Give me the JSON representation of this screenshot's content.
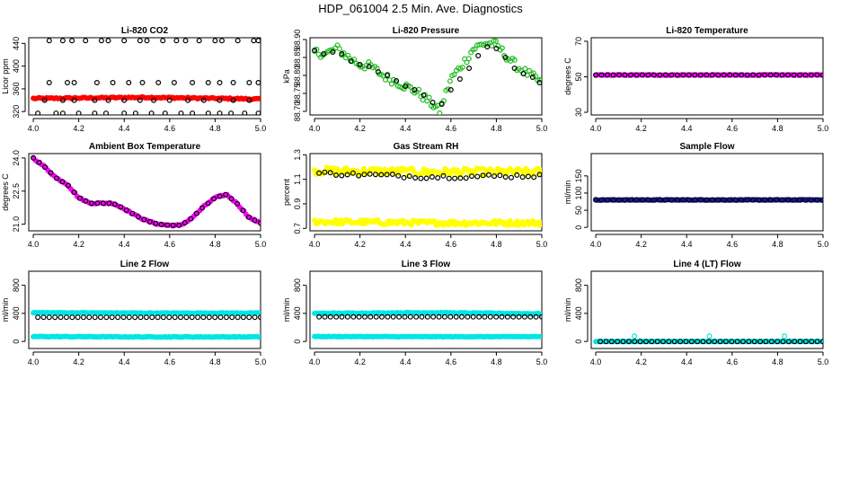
{
  "main_title": "HDP_061004  2.5 Min. Ave. Diagnostics",
  "chart_data": [
    {
      "type": "scatter",
      "id": "co2",
      "title": "Li-820 CO2",
      "ylabel": "Licor ppm",
      "xlim": [
        3.98,
        5.0
      ],
      "ylim": [
        314,
        450
      ],
      "xticks": [
        4.0,
        4.2,
        4.4,
        4.6,
        4.8,
        5.0
      ],
      "xtick_labels": [
        "4.0",
        "4.2",
        "4.4",
        "4.6",
        "4.8",
        "5.0"
      ],
      "yticks": [
        320,
        360,
        400,
        440
      ],
      "ytick_labels": [
        "320",
        "360",
        "400",
        "440"
      ],
      "series": [
        {
          "name": "CO2 1-sec",
          "color": "#ff0000",
          "filled": true,
          "kind": "band",
          "x_from": 4.0,
          "x_to": 5.0,
          "n": 120,
          "y_start": 343,
          "y_mid": 345,
          "y_end": 342,
          "jitter": 1.2
        },
        {
          "name": "CO2 high",
          "color": "#000000",
          "filled": false,
          "x": [
            4.07,
            4.13,
            4.17,
            4.23,
            4.3,
            4.33,
            4.4,
            4.47,
            4.5,
            4.57,
            4.63,
            4.67,
            4.73,
            4.8,
            4.83,
            4.9,
            4.97,
            4.99
          ],
          "y": [
            445,
            445,
            445,
            445,
            445,
            445,
            445,
            445,
            445,
            445,
            445,
            445,
            445,
            445,
            445,
            445,
            445,
            445
          ]
        },
        {
          "name": "CO2 mid",
          "color": "#000000",
          "filled": false,
          "x": [
            4.07,
            4.15,
            4.18,
            4.28,
            4.35,
            4.42,
            4.48,
            4.55,
            4.62,
            4.7,
            4.77,
            4.82,
            4.88,
            4.95,
            4.99
          ],
          "y": [
            371,
            371,
            371,
            371,
            371,
            371,
            371,
            371,
            371,
            371,
            371,
            371,
            371,
            371,
            371
          ]
        },
        {
          "name": "CO2 avg",
          "color": "#000000",
          "filled": false,
          "x": [
            4.05,
            4.13,
            4.18,
            4.27,
            4.33,
            4.4,
            4.47,
            4.53,
            4.6,
            4.68,
            4.75,
            4.82,
            4.88,
            4.95
          ],
          "y": [
            340,
            340,
            340,
            340,
            340,
            340,
            340,
            340,
            340,
            340,
            340,
            340,
            340,
            340
          ]
        },
        {
          "name": "CO2 low",
          "color": "#000000",
          "filled": false,
          "x": [
            4.02,
            4.1,
            4.13,
            4.2,
            4.27,
            4.32,
            4.4,
            4.45,
            4.52,
            4.58,
            4.65,
            4.7,
            4.77,
            4.82,
            4.87,
            4.93,
            4.99
          ],
          "y": [
            317,
            317,
            317,
            317,
            317,
            317,
            317,
            317,
            317,
            317,
            317,
            317,
            317,
            317,
            317,
            317,
            317
          ]
        }
      ]
    },
    {
      "type": "scatter",
      "id": "pressure",
      "title": "Li-820 Pressure",
      "ylabel": "kPa",
      "xlim": [
        3.98,
        5.0
      ],
      "ylim": [
        88.69,
        88.905
      ],
      "xticks": [
        4.0,
        4.2,
        4.4,
        4.6,
        4.8,
        5.0
      ],
      "xtick_labels": [
        "4.0",
        "4.2",
        "4.4",
        "4.6",
        "4.8",
        "5.0"
      ],
      "yticks": [
        88.7,
        88.75,
        88.8,
        88.85,
        88.9
      ],
      "ytick_labels": [
        "88.70",
        "88.75",
        "88.80",
        "88.85",
        "88.90"
      ],
      "series": [
        {
          "name": "Pressure 1-sec",
          "color": "#22bb22",
          "filled": false,
          "kind": "curve",
          "n": 110,
          "jitter": 0.012,
          "x": [
            4.0,
            4.05,
            4.1,
            4.15,
            4.2,
            4.25,
            4.3,
            4.35,
            4.4,
            4.45,
            4.5,
            4.55,
            4.6,
            4.65,
            4.7,
            4.75,
            4.8,
            4.85,
            4.9,
            4.95,
            5.0
          ],
          "y": [
            88.865,
            88.86,
            88.875,
            88.85,
            88.83,
            88.825,
            88.8,
            88.785,
            88.77,
            88.755,
            88.73,
            88.7,
            88.79,
            88.83,
            88.875,
            88.89,
            88.885,
            88.85,
            88.82,
            88.8,
            88.78
          ]
        },
        {
          "name": "Pressure avg",
          "color": "#000000",
          "filled": false,
          "x": [
            4.0,
            4.04,
            4.08,
            4.12,
            4.16,
            4.2,
            4.24,
            4.28,
            4.32,
            4.36,
            4.4,
            4.44,
            4.48,
            4.52,
            4.56,
            4.6,
            4.64,
            4.68,
            4.72,
            4.76,
            4.8,
            4.84,
            4.88,
            4.92,
            4.96,
            4.99
          ],
          "y": [
            88.87,
            88.86,
            88.865,
            88.86,
            88.84,
            88.83,
            88.825,
            88.81,
            88.8,
            88.785,
            88.77,
            88.76,
            88.745,
            88.725,
            88.72,
            88.76,
            88.79,
            88.82,
            88.855,
            88.88,
            88.875,
            88.85,
            88.82,
            88.805,
            88.795,
            88.78
          ]
        }
      ]
    },
    {
      "type": "scatter",
      "id": "li820temp",
      "title": "Li-820 Temperature",
      "ylabel": "degrees C",
      "xlim": [
        3.98,
        5.0
      ],
      "ylim": [
        28.5,
        72
      ],
      "xticks": [
        4.0,
        4.2,
        4.4,
        4.6,
        4.8,
        5.0
      ],
      "xtick_labels": [
        "4.0",
        "4.2",
        "4.4",
        "4.6",
        "4.8",
        "5.0"
      ],
      "yticks": [
        30,
        50,
        70
      ],
      "ytick_labels": [
        "30",
        "50",
        "70"
      ],
      "series": [
        {
          "name": "Temp 1-sec",
          "color": "#ff00ff",
          "filled": true,
          "kind": "band",
          "x_from": 4.0,
          "x_to": 5.0,
          "n": 120,
          "y_start": 51,
          "y_mid": 51,
          "y_end": 51,
          "jitter": 0.2
        },
        {
          "name": "Temp avg",
          "color": "#000000",
          "filled": false,
          "kind": "even",
          "x_from": 4.0,
          "x_to": 5.0,
          "n": 40,
          "y_value": 51
        }
      ]
    },
    {
      "type": "scatter",
      "id": "boxtemp",
      "title": "Ambient Box Temperature",
      "ylabel": "degrees C",
      "xlim": [
        3.98,
        5.0
      ],
      "ylim": [
        20.7,
        24.2
      ],
      "xticks": [
        4.0,
        4.2,
        4.4,
        4.6,
        4.8,
        5.0
      ],
      "xtick_labels": [
        "4.0",
        "4.2",
        "4.4",
        "4.6",
        "4.8",
        "5.0"
      ],
      "yticks": [
        21.0,
        22.5,
        24.0
      ],
      "ytick_labels": [
        "21.0",
        "22.5",
        "24.0"
      ],
      "series": [
        {
          "name": "Box temp 1-sec",
          "color": "#ff00ff",
          "filled": true,
          "kind": "curve",
          "n": 110,
          "jitter": 0.03,
          "x": [
            4.0,
            4.05,
            4.1,
            4.15,
            4.2,
            4.25,
            4.3,
            4.35,
            4.4,
            4.45,
            4.5,
            4.55,
            4.6,
            4.65,
            4.7,
            4.75,
            4.8,
            4.85,
            4.9,
            4.95,
            5.0
          ],
          "y": [
            24.0,
            23.6,
            23.1,
            22.8,
            22.2,
            21.95,
            21.95,
            21.95,
            21.7,
            21.4,
            21.15,
            21.0,
            20.95,
            20.95,
            21.3,
            21.8,
            22.2,
            22.35,
            21.9,
            21.3,
            21.05
          ]
        },
        {
          "name": "Box temp avg",
          "color": "#000000",
          "filled": false,
          "kind": "curve",
          "n": 40,
          "jitter": 0.0,
          "x": [
            4.0,
            4.05,
            4.1,
            4.15,
            4.2,
            4.25,
            4.3,
            4.35,
            4.4,
            4.45,
            4.5,
            4.55,
            4.6,
            4.65,
            4.7,
            4.75,
            4.8,
            4.85,
            4.9,
            4.95,
            5.0
          ],
          "y": [
            24.0,
            23.6,
            23.1,
            22.8,
            22.2,
            21.95,
            21.95,
            21.95,
            21.7,
            21.4,
            21.15,
            21.0,
            20.95,
            20.95,
            21.3,
            21.8,
            22.2,
            22.35,
            21.9,
            21.3,
            21.05
          ]
        }
      ]
    },
    {
      "type": "scatter",
      "id": "rh",
      "title": "Gas Stream RH",
      "ylabel": "percent",
      "xlim": [
        3.98,
        5.0
      ],
      "ylim": [
        0.68,
        1.31
      ],
      "xticks": [
        4.0,
        4.2,
        4.4,
        4.6,
        4.8,
        5.0
      ],
      "xtick_labels": [
        "4.0",
        "4.2",
        "4.4",
        "4.6",
        "4.8",
        "5.0"
      ],
      "yticks": [
        0.7,
        0.9,
        1.1,
        1.3
      ],
      "ytick_labels": [
        "0.7",
        "0.9",
        "1.1",
        "1.3"
      ],
      "series": [
        {
          "name": "RH upper 1-sec",
          "color": "#ffff00",
          "filled": true,
          "kind": "band",
          "x_from": 4.0,
          "x_to": 5.0,
          "n": 130,
          "y_start": 1.17,
          "y_mid": 1.16,
          "y_end": 1.16,
          "jitter": 0.03
        },
        {
          "name": "RH lower 1-sec",
          "color": "#ffff00",
          "filled": true,
          "kind": "band",
          "x_from": 4.0,
          "x_to": 5.0,
          "n": 130,
          "y_start": 0.755,
          "y_mid": 0.745,
          "y_end": 0.745,
          "jitter": 0.02
        },
        {
          "name": "RH avg",
          "color": "#000000",
          "filled": false,
          "kind": "band",
          "x_from": 4.02,
          "x_to": 4.99,
          "n": 40,
          "y_start": 1.15,
          "y_mid": 1.12,
          "y_end": 1.13,
          "jitter": 0.015
        }
      ]
    },
    {
      "type": "scatter",
      "id": "sampleflow",
      "title": "Sample Flow",
      "ylabel": "ml/min",
      "xlim": [
        3.98,
        5.0
      ],
      "ylim": [
        -10,
        215
      ],
      "xticks": [
        4.0,
        4.2,
        4.4,
        4.6,
        4.8,
        5.0
      ],
      "xtick_labels": [
        "4.0",
        "4.2",
        "4.4",
        "4.6",
        "4.8",
        "5.0"
      ],
      "yticks": [
        0,
        50,
        100,
        150
      ],
      "ytick_labels": [
        "0",
        "50",
        "100",
        "150"
      ],
      "series": [
        {
          "name": "Sample 1-sec",
          "color": "#1a1aa0",
          "filled": true,
          "kind": "band",
          "x_from": 4.0,
          "x_to": 5.0,
          "n": 150,
          "y_start": 80,
          "y_mid": 80,
          "y_end": 80,
          "jitter": 0.8
        },
        {
          "name": "Sample avg",
          "color": "#000000",
          "filled": false,
          "kind": "even",
          "x_from": 4.0,
          "x_to": 5.0,
          "n": 40,
          "y_value": 80
        }
      ]
    },
    {
      "type": "scatter",
      "id": "line2",
      "title": "Line 2 Flow",
      "ylabel": "ml/min",
      "xlim": [
        3.98,
        5.0
      ],
      "ylim": [
        -100,
        1000
      ],
      "xticks": [
        4.0,
        4.2,
        4.4,
        4.6,
        4.8,
        5.0
      ],
      "xtick_labels": [
        "4.0",
        "4.2",
        "4.4",
        "4.6",
        "4.8",
        "5.0"
      ],
      "yticks": [
        0,
        400,
        800
      ],
      "ytick_labels": [
        "0",
        "400",
        "800"
      ],
      "series": [
        {
          "name": "Line 2 high",
          "color": "#00e5e5",
          "filled": true,
          "kind": "band",
          "x_from": 4.0,
          "x_to": 5.0,
          "n": 130,
          "y_start": 410,
          "y_mid": 405,
          "y_end": 405,
          "jitter": 5
        },
        {
          "name": "Line 2 low",
          "color": "#00e5e5",
          "filled": true,
          "kind": "band",
          "x_from": 4.0,
          "x_to": 5.0,
          "n": 130,
          "y_start": 70,
          "y_mid": 65,
          "y_end": 65,
          "jitter": 5
        },
        {
          "name": "Line 2 avg",
          "color": "#000000",
          "filled": false,
          "kind": "even",
          "x_from": 4.02,
          "x_to": 5.0,
          "n": 40,
          "y_value": 345
        }
      ]
    },
    {
      "type": "scatter",
      "id": "line3",
      "title": "Line 3 Flow",
      "ylabel": "ml/min",
      "xlim": [
        3.98,
        5.0
      ],
      "ylim": [
        -100,
        1000
      ],
      "xticks": [
        4.0,
        4.2,
        4.4,
        4.6,
        4.8,
        5.0
      ],
      "xtick_labels": [
        "4.0",
        "4.2",
        "4.4",
        "4.6",
        "4.8",
        "5.0"
      ],
      "yticks": [
        0,
        400,
        800
      ],
      "ytick_labels": [
        "0",
        "400",
        "800"
      ],
      "series": [
        {
          "name": "Line 3 high",
          "color": "#00e5e5",
          "filled": true,
          "kind": "band",
          "x_from": 4.0,
          "x_to": 5.0,
          "n": 130,
          "y_start": 400,
          "y_mid": 410,
          "y_end": 395,
          "jitter": 6
        },
        {
          "name": "Line 3 low",
          "color": "#00e5e5",
          "filled": true,
          "kind": "band",
          "x_from": 4.0,
          "x_to": 5.0,
          "n": 130,
          "y_start": 70,
          "y_mid": 68,
          "y_end": 68,
          "jitter": 4
        },
        {
          "name": "Line 3 avg",
          "color": "#000000",
          "filled": false,
          "kind": "even",
          "x_from": 4.02,
          "x_to": 5.0,
          "n": 40,
          "y_value": 350
        }
      ]
    },
    {
      "type": "scatter",
      "id": "line4",
      "title": "Line 4 (LT) Flow",
      "ylabel": "ml/min",
      "xlim": [
        3.98,
        5.0
      ],
      "ylim": [
        -100,
        1000
      ],
      "xticks": [
        4.0,
        4.2,
        4.4,
        4.6,
        4.8,
        5.0
      ],
      "xtick_labels": [
        "4.0",
        "4.2",
        "4.4",
        "4.6",
        "4.8",
        "5.0"
      ],
      "yticks": [
        0,
        400,
        800
      ],
      "ytick_labels": [
        "0",
        "400",
        "800"
      ],
      "series": [
        {
          "name": "Line 4 1-sec",
          "color": "#00e5e5",
          "filled": true,
          "kind": "band",
          "x_from": 4.0,
          "x_to": 5.0,
          "n": 130,
          "y_start": 0,
          "y_mid": 0,
          "y_end": 0,
          "jitter": 2
        },
        {
          "name": "Line 4 spikes",
          "color": "#00e5e5",
          "filled": false,
          "x": [
            4.17,
            4.5,
            4.83
          ],
          "y": [
            75,
            75,
            75
          ]
        },
        {
          "name": "Line 4 avg",
          "color": "#000000",
          "filled": false,
          "kind": "even",
          "x_from": 4.02,
          "x_to": 5.0,
          "n": 40,
          "y_value": 0
        }
      ]
    }
  ]
}
